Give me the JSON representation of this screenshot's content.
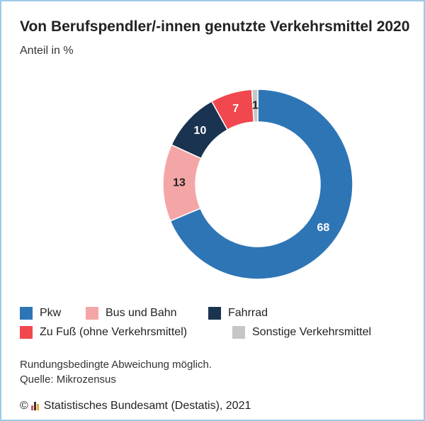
{
  "chart_data": {
    "type": "pie",
    "title": "Von Berufspendler/-innen genutzte Verkehrsmittel 2020",
    "subtitle": "Anteil in %",
    "categories": [
      "Pkw",
      "Bus und Bahn",
      "Fahrrad",
      "Zu Fuß (ohne Verkehrsmittel)",
      "Sonstige Verkehrsmittel"
    ],
    "values": [
      68,
      13,
      10,
      7,
      1
    ],
    "labels": [
      "68",
      "13",
      "10",
      "7",
      "1"
    ],
    "colors": [
      "#2e75b6",
      "#f4a6a6",
      "#1a3350",
      "#f0484e",
      "#c6c6c6"
    ],
    "label_colors": [
      "#ffffff",
      "#222222",
      "#ffffff",
      "#ffffff",
      "#222222"
    ],
    "donut": true,
    "legend_position": "bottom"
  },
  "notes": {
    "line1": "Rundungsbedingte Abweichung möglich.",
    "line2": "Quelle: Mikrozensus"
  },
  "footer": {
    "copyright": "©",
    "logo_icon": "destatis-logo-icon",
    "text": "Statistisches Bundesamt (Destatis), 2021"
  }
}
